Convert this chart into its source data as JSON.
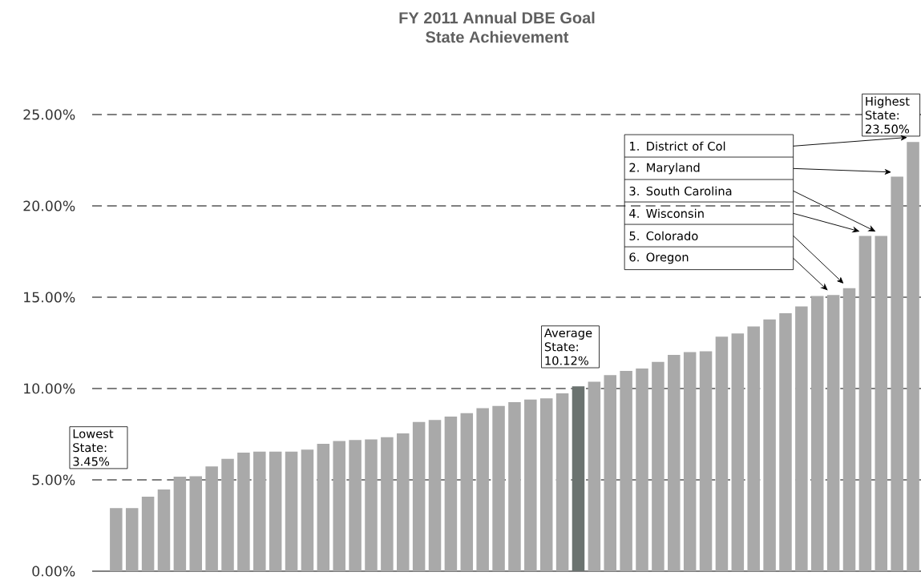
{
  "chart_data": {
    "type": "bar",
    "title": "FY 2011 Annual DBE Goal",
    "subtitle": "State Achievement",
    "categories": [
      null,
      null,
      null,
      null,
      null,
      null,
      null,
      null,
      null,
      null,
      null,
      null,
      null,
      null,
      null,
      null,
      null,
      null,
      null,
      null,
      null,
      null,
      null,
      null,
      null,
      null,
      null,
      null,
      null,
      null,
      null,
      null,
      null,
      null,
      null,
      null,
      null,
      null,
      null,
      null,
      null,
      null,
      null,
      null,
      null,
      null,
      null,
      null,
      null,
      null,
      null
    ],
    "values": [
      3.45,
      3.45,
      4.08,
      4.47,
      5.18,
      5.2,
      5.73,
      6.15,
      6.49,
      6.54,
      6.54,
      6.54,
      6.65,
      6.97,
      7.13,
      7.18,
      7.21,
      7.34,
      7.54,
      8.17,
      8.28,
      8.46,
      8.65,
      8.93,
      9.05,
      9.25,
      9.4,
      9.46,
      9.74,
      10.12,
      10.37,
      10.73,
      10.96,
      11.1,
      11.46,
      11.84,
      12.0,
      12.04,
      12.84,
      13.02,
      13.4,
      13.78,
      14.12,
      14.49,
      15.06,
      15.12,
      15.49,
      18.35,
      18.35,
      21.6,
      23.5
    ],
    "colors": [
      "#a9a9a9",
      "#a9a9a9",
      "#a9a9a9",
      "#a9a9a9",
      "#a9a9a9",
      "#a9a9a9",
      "#a9a9a9",
      "#a9a9a9",
      "#a9a9a9",
      "#a9a9a9",
      "#a9a9a9",
      "#a9a9a9",
      "#a9a9a9",
      "#a9a9a9",
      "#a9a9a9",
      "#a9a9a9",
      "#a9a9a9",
      "#a9a9a9",
      "#a9a9a9",
      "#a9a9a9",
      "#a9a9a9",
      "#a9a9a9",
      "#a9a9a9",
      "#a9a9a9",
      "#a9a9a9",
      "#a9a9a9",
      "#a9a9a9",
      "#a9a9a9",
      "#a9a9a9",
      "#6b7370",
      "#a9a9a9",
      "#a9a9a9",
      "#a9a9a9",
      "#a9a9a9",
      "#a9a9a9",
      "#a9a9a9",
      "#a9a9a9",
      "#a9a9a9",
      "#a9a9a9",
      "#a9a9a9",
      "#a9a9a9",
      "#a9a9a9",
      "#a9a9a9",
      "#a9a9a9",
      "#a9a9a9",
      "#a9a9a9",
      "#a9a9a9",
      "#a9a9a9",
      "#a9a9a9",
      "#a9a9a9",
      "#a9a9a9"
    ],
    "ylim": [
      0,
      25
    ],
    "yticks": [
      {
        "value": 0,
        "label": "0.00%"
      },
      {
        "value": 5,
        "label": "5.00%"
      },
      {
        "value": 10,
        "label": "10.00%"
      },
      {
        "value": 15,
        "label": "15.00%"
      },
      {
        "value": 20,
        "label": "20.00%"
      },
      {
        "value": 25,
        "label": "25.00%"
      }
    ],
    "grid": "y",
    "annotations": [
      "Lowest State: 3.45%",
      "Average State: 10.12%",
      "Highest State: 23.50%",
      "1. District of Col",
      "2. Maryland",
      "3. South Carolina",
      "4. Wisconsin",
      "5. Colorado",
      "6. Oregon"
    ]
  }
}
